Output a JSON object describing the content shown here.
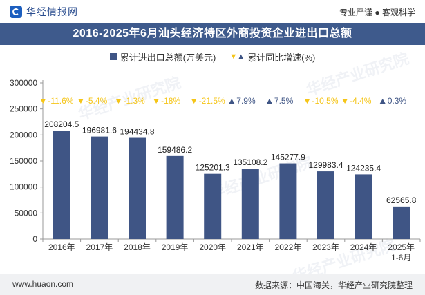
{
  "header": {
    "brand": "华经情报网",
    "tagline": "专业严谨 ● 客观科学"
  },
  "footer": {
    "url": "www.huaon.com",
    "source": "数据来源：中国海关，华经产业研究院整理"
  },
  "watermark": "华经产业研究院",
  "legend": {
    "bar_label": "累计进出口总额(万美元)",
    "growth_label": "累计同比增速(%)"
  },
  "colors": {
    "bar": "#3f5585",
    "negative": "#f5c518",
    "positive": "#3f5585",
    "title_bg": "#3e5a8c"
  },
  "chart_data": {
    "type": "bar",
    "title": "2016-2025年6月汕头经济特区外商投资企业进出口总额",
    "categories": [
      "2016年",
      "2017年",
      "2018年",
      "2019年",
      "2020年",
      "2021年",
      "2022年",
      "2023年",
      "2024年",
      "2025年\n1-6月"
    ],
    "category_lines": [
      [
        "2016年"
      ],
      [
        "2017年"
      ],
      [
        "2018年"
      ],
      [
        "2019年"
      ],
      [
        "2020年"
      ],
      [
        "2021年"
      ],
      [
        "2022年"
      ],
      [
        "2023年"
      ],
      [
        "2024年"
      ],
      [
        "2025年",
        "1-6月"
      ]
    ],
    "series": [
      {
        "name": "累计进出口总额(万美元)",
        "values": [
          208204.5,
          196981.6,
          194434.8,
          159486.2,
          125201.3,
          135108.2,
          145277.9,
          129983.4,
          124235.4,
          62565.8
        ],
        "value_labels": [
          "208204.5",
          "196981.6",
          "194434.8",
          "159486.2",
          "125201.3",
          "135108.2",
          "145277.9",
          "129983.4",
          "124235.4",
          "62565.8"
        ]
      },
      {
        "name": "累计同比增速(%)",
        "values": [
          -11.6,
          -5.4,
          -1.3,
          -18,
          -21.5,
          7.9,
          7.5,
          -10.5,
          -4.4,
          0.3
        ],
        "value_labels": [
          "-11.6%",
          "-5.4%",
          "-1.3%",
          "-18%",
          "-21.5%",
          "7.9%",
          "7.5%",
          "-10.5%",
          "-4.4%",
          "0.3%"
        ]
      }
    ],
    "ylim": [
      0,
      300000
    ],
    "yticks": [
      0,
      50000,
      100000,
      150000,
      200000,
      250000,
      300000
    ],
    "ytick_labels": [
      "0",
      "50000",
      "100000",
      "150000",
      "200000",
      "250000",
      "300000"
    ],
    "xlabel": "",
    "ylabel": "",
    "grid": false,
    "legend_position": "top-center"
  }
}
